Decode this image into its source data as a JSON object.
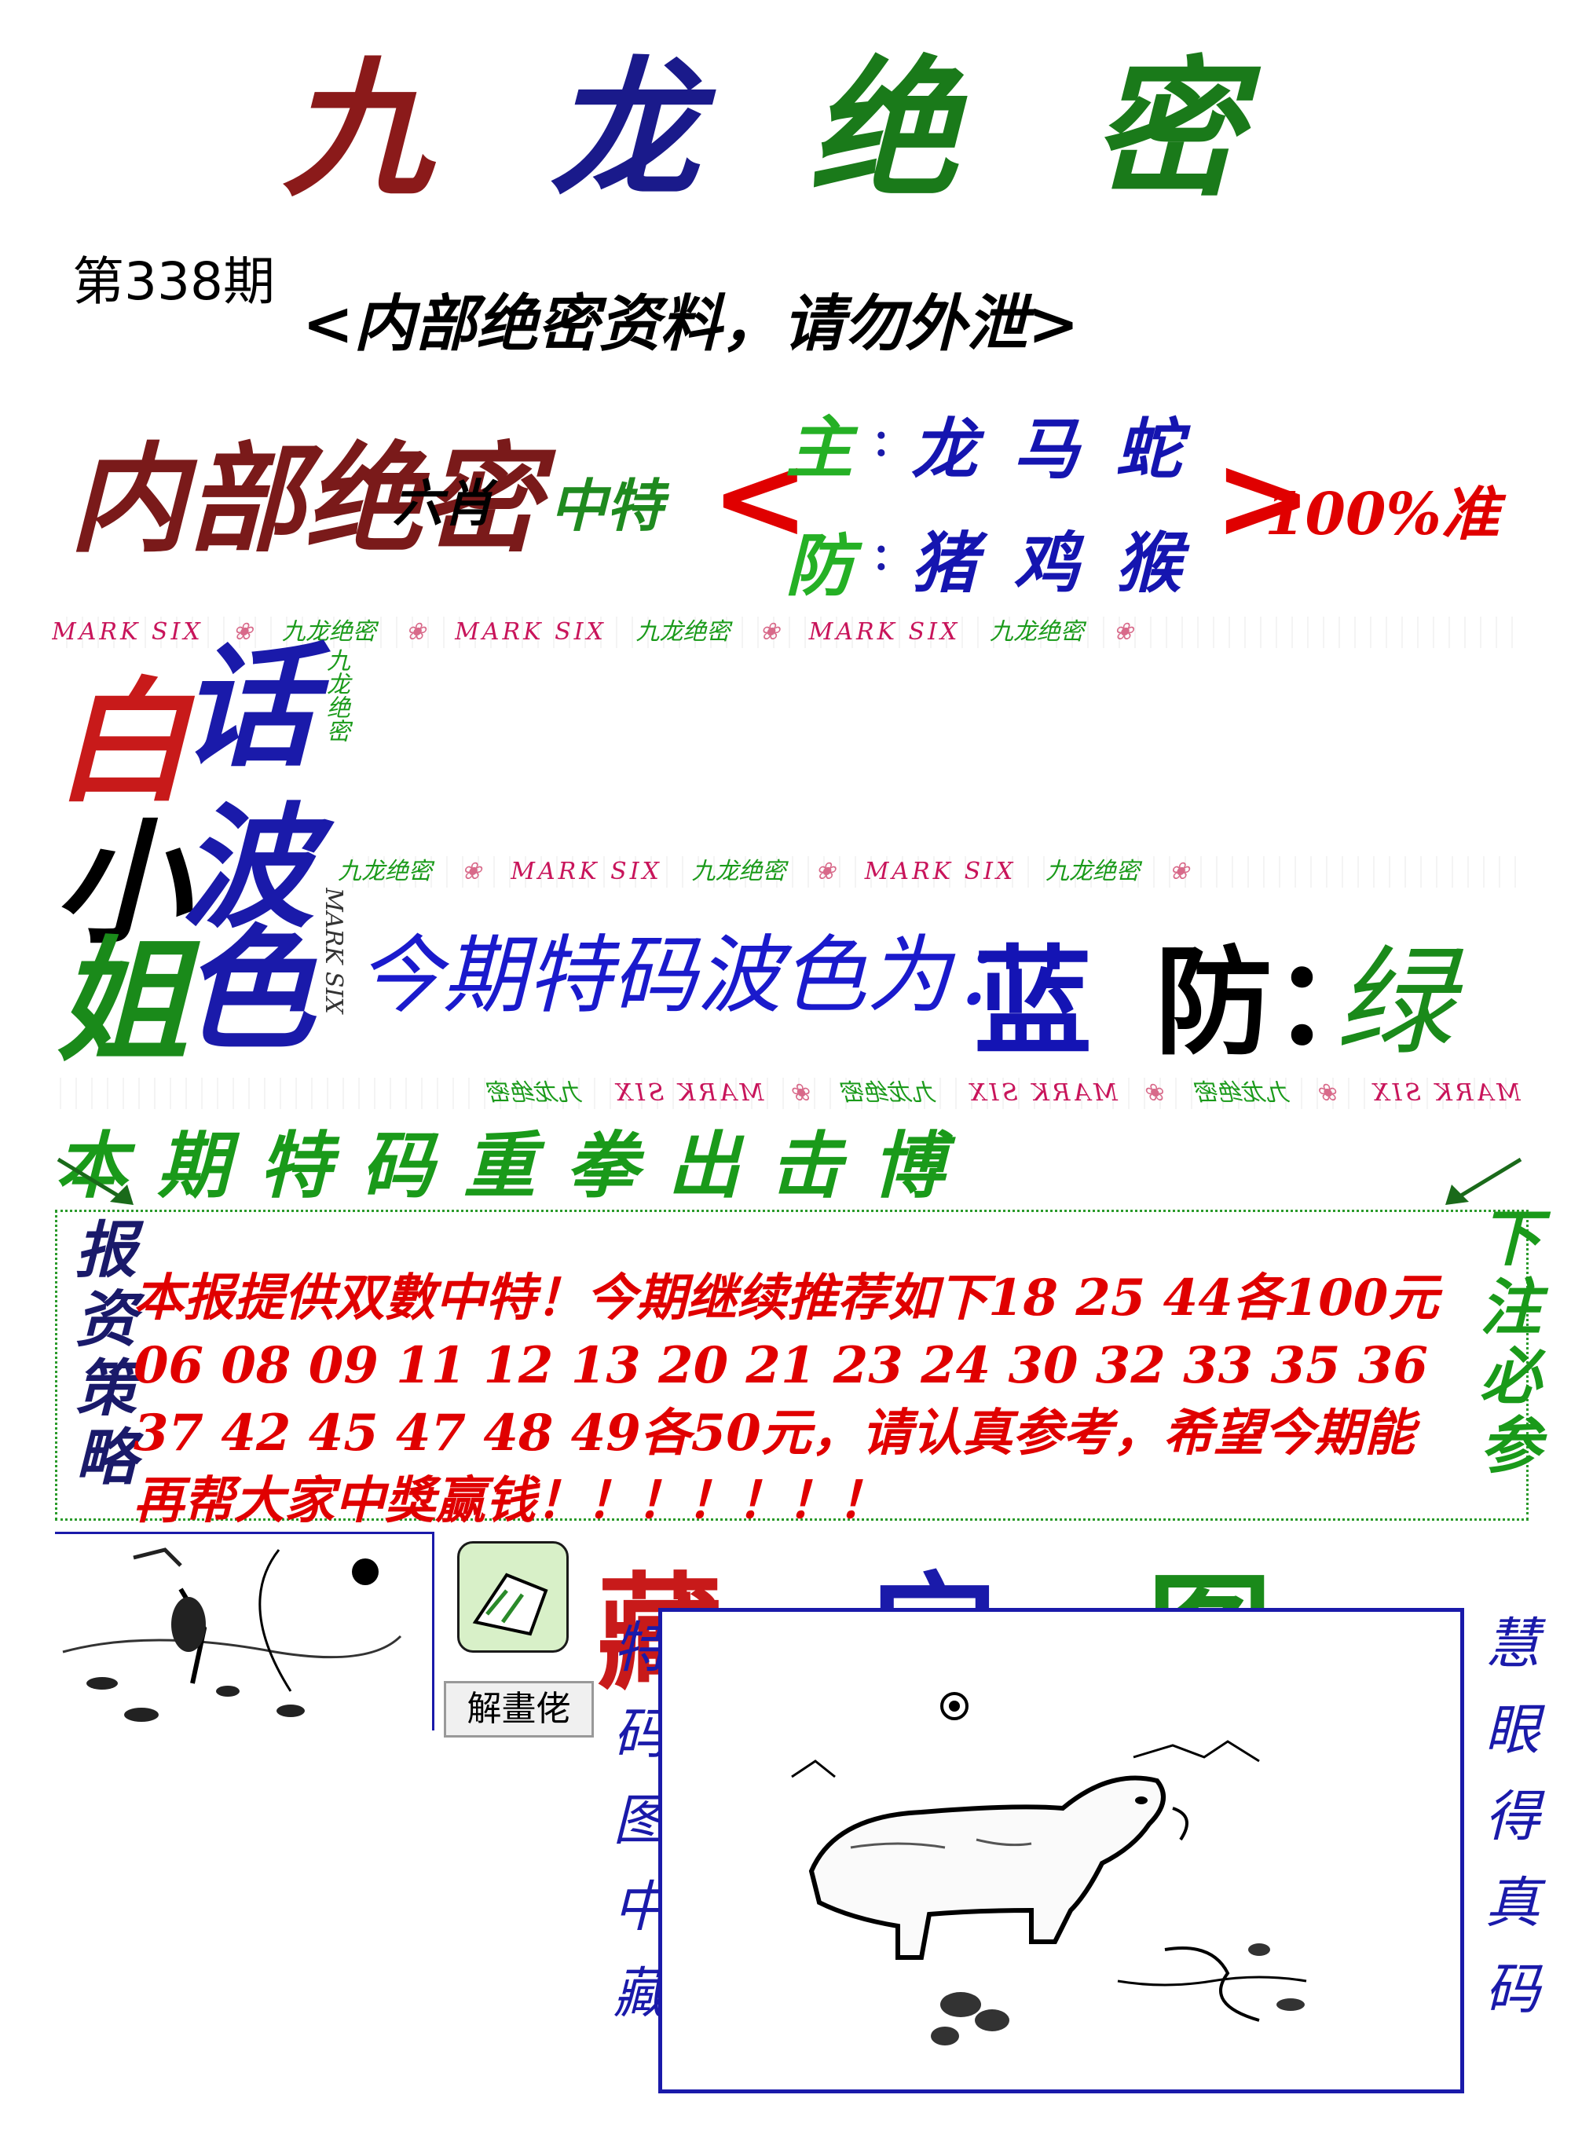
{
  "title": {
    "chars": [
      "九",
      "龙",
      "绝",
      "密"
    ],
    "colors": [
      "#8b1a1a",
      "#1a1a8b",
      "#1a7a1a",
      "#1a7a1a"
    ]
  },
  "issue": "第338期",
  "subtitle": "<内部绝密资料，请勿外泄>",
  "six_zodiac": {
    "inner_secret": "内部绝密",
    "six": "六肖",
    "special": "中特",
    "open_bracket": "<",
    "close_bracket": ">",
    "main_label": "主",
    "main_colon": ":",
    "main_values": [
      "龙",
      "马",
      "蛇"
    ],
    "defense_label": "防",
    "defense_colon": ":",
    "defense_values": [
      "猪",
      "鸡",
      "猴"
    ],
    "accuracy": "100%准"
  },
  "strip": {
    "mark": "MARK SIX",
    "jiulong": "九龙绝密",
    "flower": "❀"
  },
  "side_chars": {
    "bai": "白",
    "hua": "话",
    "xiao": "小",
    "bo": "波",
    "jie": "姐",
    "se": "色"
  },
  "wave": {
    "label": "今期特码波色为：",
    "main": "蓝",
    "defense_label": "防：",
    "defense": "绿"
  },
  "banner": "本期特码重拳出击博",
  "strategy": {
    "left_label": "报资策略",
    "right_label": "下注必参",
    "text": "本报提供双數中特！今期继续推荐如下18 25 44各100元06 08 09 11 12 13 20 21 23 24 30 32 33 35 36 37 42 45 47 48 49各50元，请认真参考，希望今期能再帮大家中獎赢钱！！！！！！！"
  },
  "jie_button": "解畫佬",
  "treasure": {
    "chars": [
      "藏",
      "宝",
      "图"
    ],
    "colors": [
      "#c81a1a",
      "#1a1aaa",
      "#1a8a1a"
    ]
  },
  "left_vertical": "特码图中藏",
  "right_vertical": "慧眼得真码"
}
